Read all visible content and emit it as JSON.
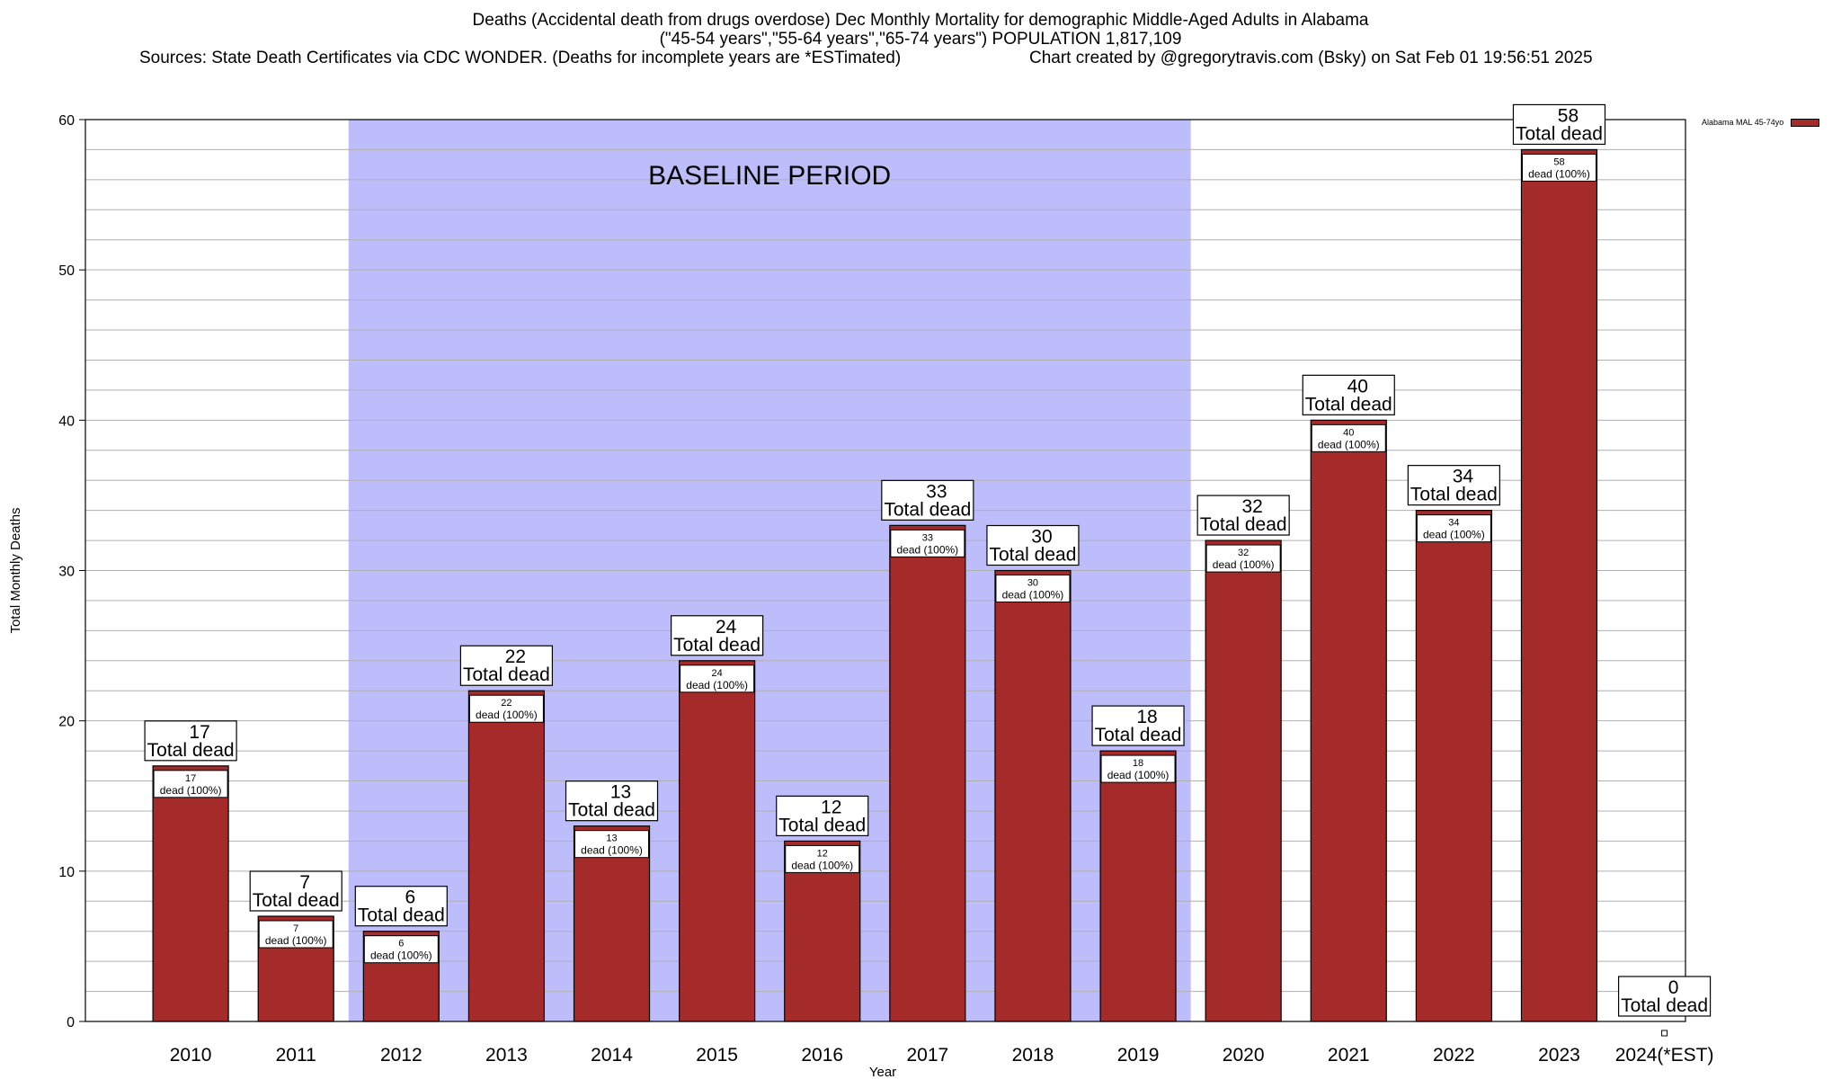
{
  "title": {
    "line1": "Deaths (Accidental death from drugs overdose) Dec Monthly Mortality for demographic Middle-Aged Adults in Alabama",
    "line2": "(\"45-54 years\",\"55-64 years\",\"65-74 years\") POPULATION 1,817,109",
    "sources": "Sources: State Death Certificates via CDC WONDER. (Deaths for incomplete years are *ESTimated)",
    "credit": "Chart created by @gregorytravis.com (Bsky) on Sat Feb 01 19:56:51 2025"
  },
  "chart_data": {
    "type": "bar",
    "xlabel": "Year",
    "ylabel": "Total Monthly Deaths",
    "ylim": [
      0,
      60
    ],
    "yticks": [
      0,
      10,
      20,
      30,
      40,
      50,
      60
    ],
    "minor_grid_step": 2,
    "grid": true,
    "categories": [
      "2010",
      "2011",
      "2012",
      "2013",
      "2014",
      "2015",
      "2016",
      "2017",
      "2018",
      "2019",
      "2020",
      "2021",
      "2022",
      "2023",
      "2024(*EST)"
    ],
    "series": [
      {
        "name": "Alabama MAL 45-74yo",
        "values": [
          17,
          7,
          6,
          22,
          13,
          24,
          12,
          33,
          30,
          18,
          32,
          40,
          34,
          58,
          0
        ]
      }
    ],
    "bar_color": "#a52a2a",
    "total_label_suffix": "Total dead",
    "inner_label_suffix": "dead (100%)",
    "baseline_period": {
      "label": "BASELINE PERIOD",
      "from": "2012",
      "to": "2019",
      "color": "#bdbdfc"
    },
    "legend": {
      "label": "Alabama MAL 45-74yo",
      "placement": "top-right outside"
    }
  }
}
